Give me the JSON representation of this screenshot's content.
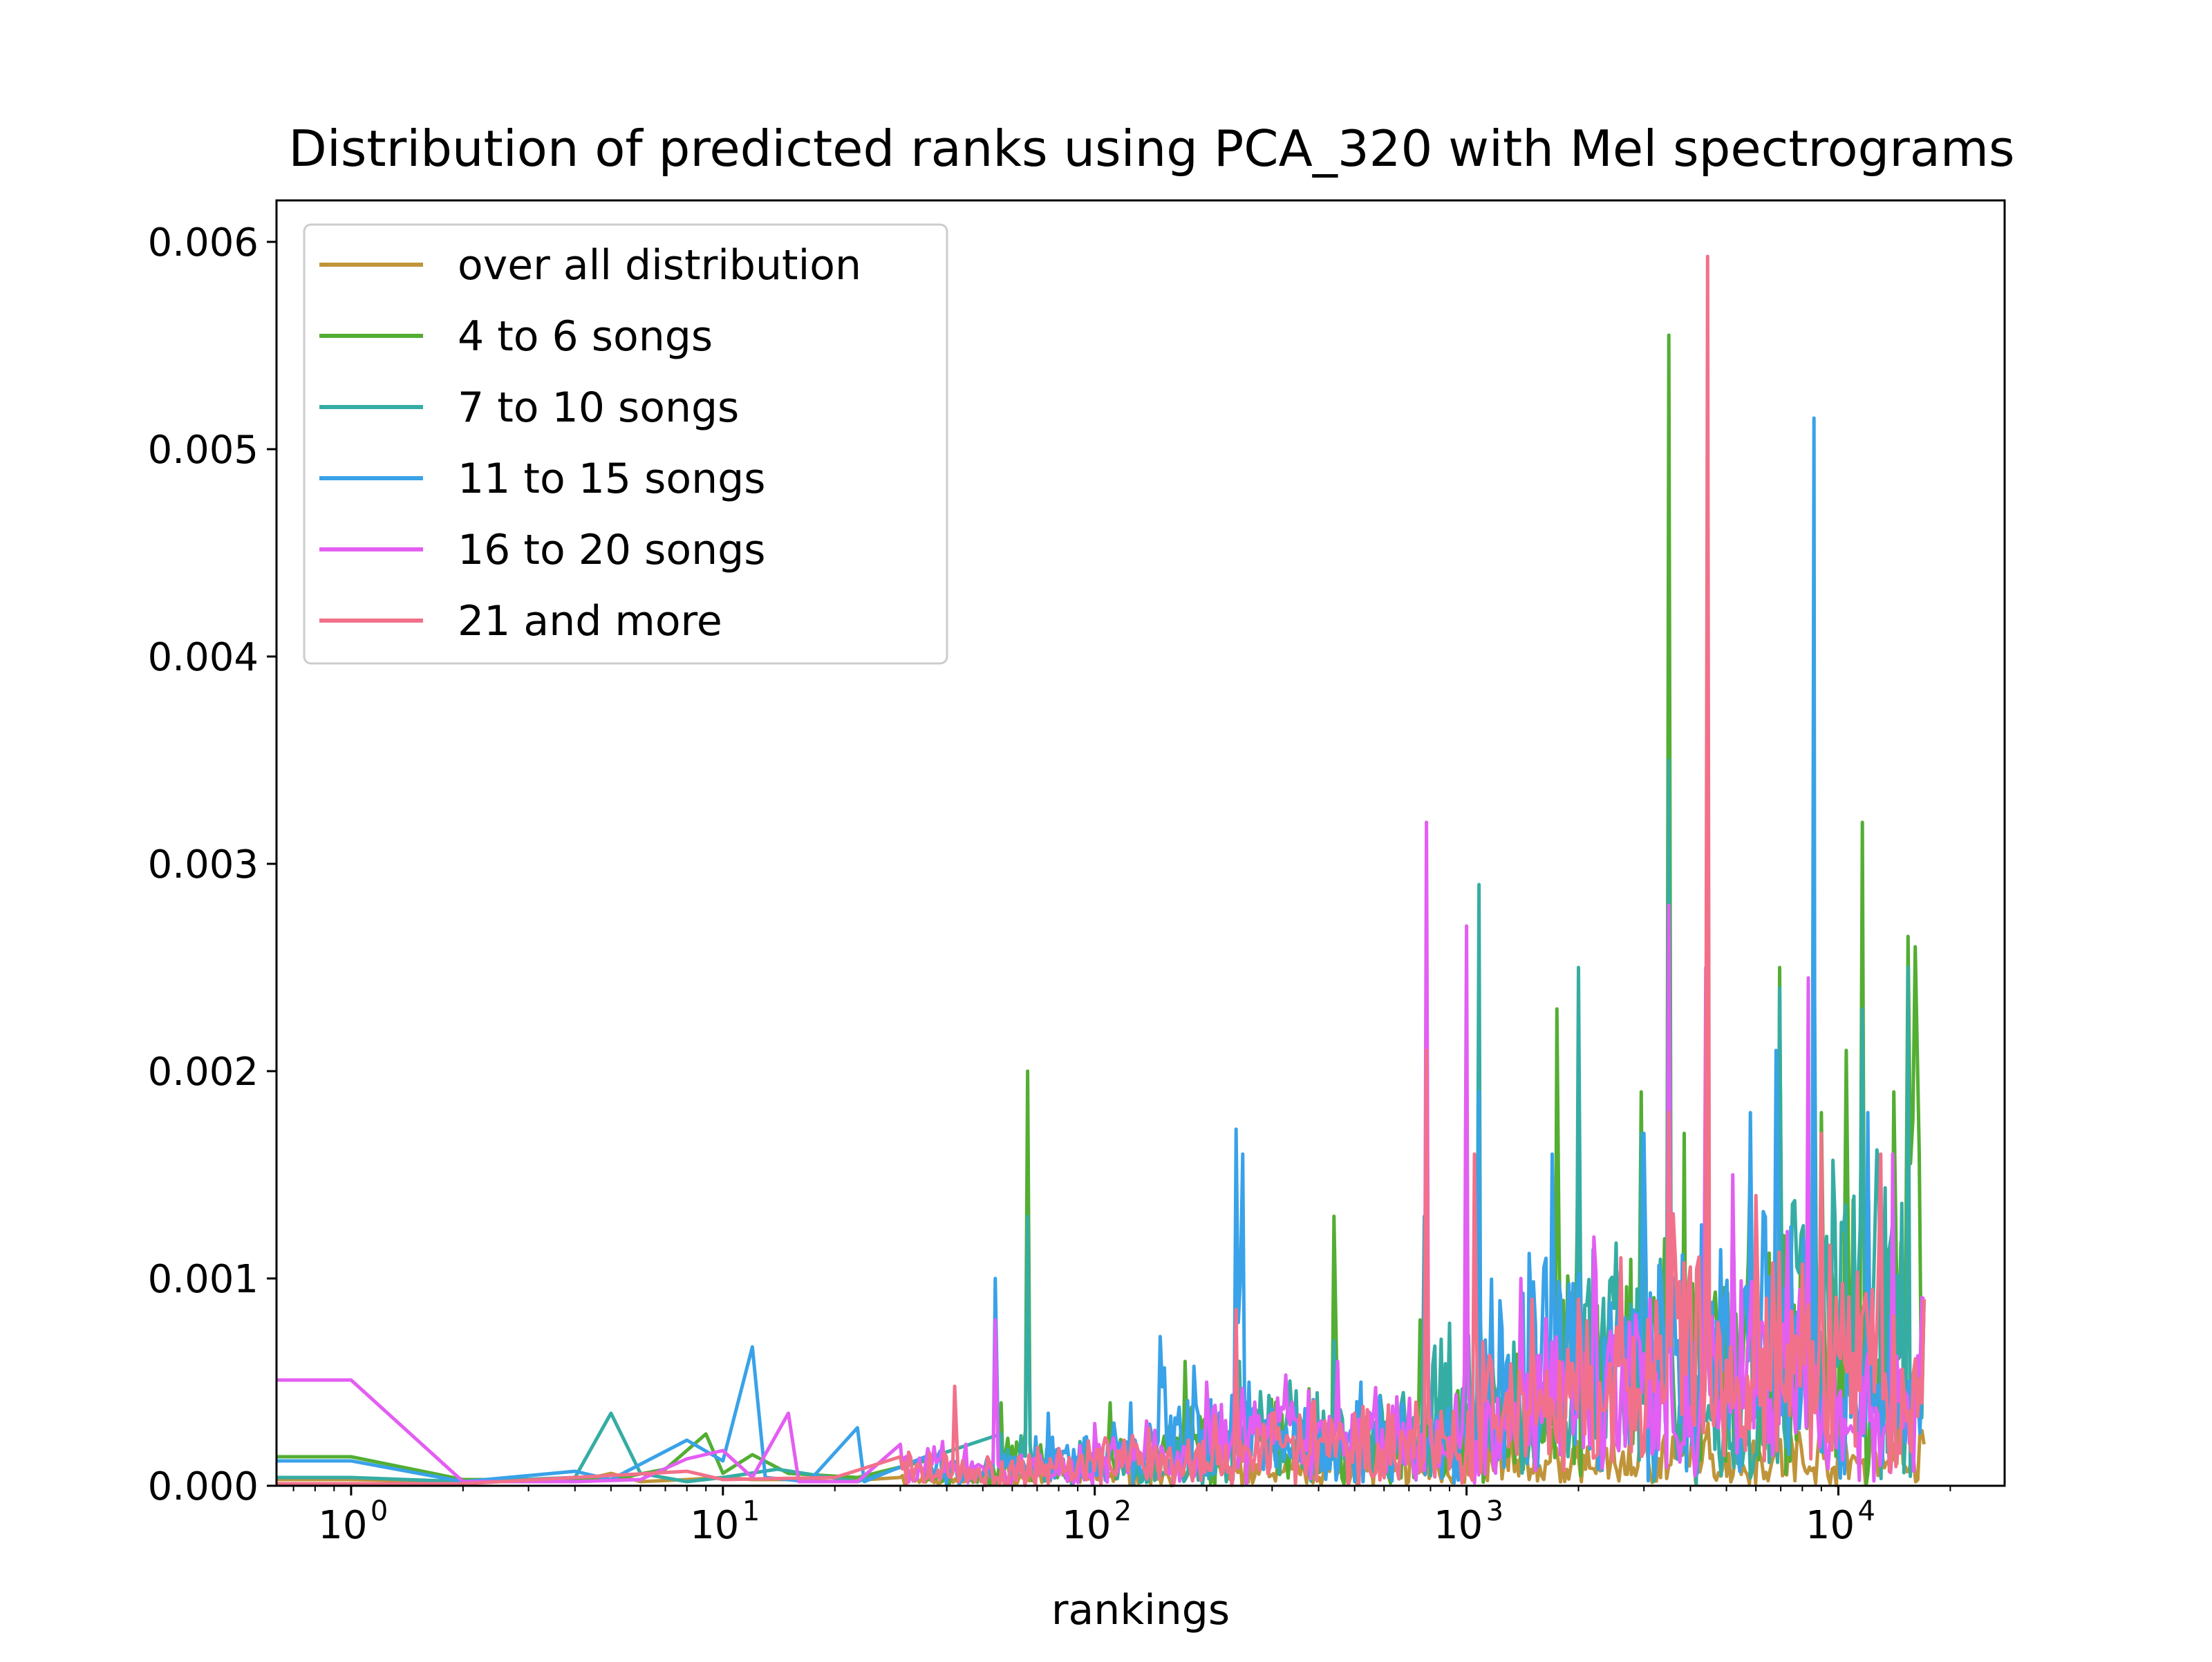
{
  "chart_data": {
    "type": "line",
    "title": "Distribution of predicted ranks using PCA_320 with Mel spectrograms",
    "xlabel": "rankings",
    "ylabel": "",
    "xscale": "log",
    "xlim": [
      0.63,
      28000
    ],
    "ylim": [
      0,
      0.0062
    ],
    "x_ticks": [
      {
        "base": "10",
        "exp": "0",
        "value": 1
      },
      {
        "base": "10",
        "exp": "1",
        "value": 10
      },
      {
        "base": "10",
        "exp": "2",
        "value": 100
      },
      {
        "base": "10",
        "exp": "3",
        "value": 1000
      },
      {
        "base": "10",
        "exp": "4",
        "value": 10000
      }
    ],
    "y_ticks": [
      "0.000",
      "0.001",
      "0.002",
      "0.003",
      "0.004",
      "0.005",
      "0.006"
    ],
    "y_tick_values": [
      0,
      0.001,
      0.002,
      0.003,
      0.004,
      0.005,
      0.006
    ],
    "grid": false,
    "legend_position": "top-left",
    "series": [
      {
        "name": "over all distribution",
        "color": "#c0943a",
        "points": [
          [
            0.63,
            3e-05
          ],
          [
            1,
            3e-05
          ],
          [
            2,
            2e-05
          ],
          [
            3,
            3e-05
          ],
          [
            4,
            2e-05
          ],
          [
            5,
            6e-05
          ],
          [
            6,
            2e-05
          ],
          [
            8,
            3e-05
          ],
          [
            10,
            4e-05
          ],
          [
            12,
            3e-05
          ],
          [
            15,
            3e-05
          ],
          [
            20,
            2e-05
          ],
          [
            30,
            4e-05
          ],
          [
            40,
            6e-05
          ],
          [
            60,
            8e-05
          ],
          [
            100,
            0.0001
          ],
          [
            200,
            0.00012
          ],
          [
            500,
            0.00015
          ],
          [
            1000,
            0.00018
          ],
          [
            3000,
            0.0002
          ],
          [
            10000,
            0.00022
          ],
          [
            17000,
            0.0002
          ]
        ]
      },
      {
        "name": "4 to 6 songs",
        "color": "#53ae33",
        "points": [
          [
            0.63,
            0.00014
          ],
          [
            1,
            0.00014
          ],
          [
            2,
            3e-05
          ],
          [
            3,
            3e-05
          ],
          [
            5,
            3e-05
          ],
          [
            7,
            8e-05
          ],
          [
            9,
            0.00025
          ],
          [
            10,
            6e-05
          ],
          [
            12,
            0.00015
          ],
          [
            15,
            6e-05
          ],
          [
            23,
            4e-05
          ],
          [
            35,
            0.00012
          ],
          [
            44,
            6e-05
          ],
          [
            56,
            0.0004
          ],
          [
            66,
            0.002
          ],
          [
            67,
            0.0002
          ],
          [
            110,
            0.0004
          ],
          [
            175,
            0.0006
          ],
          [
            240,
            0.0005
          ],
          [
            440,
            0.0013
          ],
          [
            450,
            0.0003
          ],
          [
            750,
            0.0008
          ],
          [
            1080,
            0.0008
          ],
          [
            1750,
            0.0023
          ],
          [
            2000,
            0.0017
          ],
          [
            2950,
            0.0019
          ],
          [
            3500,
            0.00555
          ],
          [
            3550,
            0.0008
          ],
          [
            3850,
            0.0017
          ],
          [
            5800,
            0.0016
          ],
          [
            6950,
            0.0025
          ],
          [
            9000,
            0.0018
          ],
          [
            10500,
            0.0021
          ],
          [
            11600,
            0.0032
          ],
          [
            14100,
            0.0019
          ],
          [
            15400,
            0.00265
          ],
          [
            16100,
            0.0026
          ],
          [
            16500,
            0.0016
          ],
          [
            17000,
            0.0009
          ]
        ]
      },
      {
        "name": "7 to 10 songs",
        "color": "#36ada4",
        "points": [
          [
            0.63,
            4e-05
          ],
          [
            1,
            4e-05
          ],
          [
            2,
            2e-05
          ],
          [
            4,
            4e-05
          ],
          [
            5,
            0.00035
          ],
          [
            6,
            6e-05
          ],
          [
            8,
            2e-05
          ],
          [
            10,
            4e-05
          ],
          [
            14,
            8e-05
          ],
          [
            23,
            2e-05
          ],
          [
            56,
            0.00025
          ],
          [
            66,
            0.0013
          ],
          [
            67,
            0.0002
          ],
          [
            200,
            0.0004
          ],
          [
            245,
            0.0006
          ],
          [
            440,
            0.0007
          ],
          [
            770,
            0.0013
          ],
          [
            1080,
            0.0029
          ],
          [
            1090,
            0.0008
          ],
          [
            2000,
            0.0025
          ],
          [
            2950,
            0.0017
          ],
          [
            3500,
            0.0035
          ],
          [
            3550,
            0.0008
          ],
          [
            6950,
            0.0024
          ],
          [
            8600,
            0.0028
          ],
          [
            11600,
            0.0023
          ],
          [
            15400,
            0.0025
          ],
          [
            17000,
            0.0009
          ]
        ]
      },
      {
        "name": "11 to 15 songs",
        "color": "#39a2e8",
        "points": [
          [
            0.63,
            0.00012
          ],
          [
            1,
            0.00012
          ],
          [
            2,
            2e-05
          ],
          [
            4,
            7e-05
          ],
          [
            5,
            3e-05
          ],
          [
            8,
            0.00022
          ],
          [
            10,
            0.00012
          ],
          [
            12,
            0.00067
          ],
          [
            13,
            4e-05
          ],
          [
            17,
            2e-05
          ],
          [
            23,
            0.00028
          ],
          [
            24,
            2e-05
          ],
          [
            35,
            0.00014
          ],
          [
            54,
            0.001
          ],
          [
            55,
            0.0002
          ],
          [
            75,
            0.00035
          ],
          [
            125,
            0.0004
          ],
          [
            150,
            0.00072
          ],
          [
            240,
            0.00172
          ],
          [
            250,
            0.0016
          ],
          [
            260,
            0.0005
          ],
          [
            520,
            0.0005
          ],
          [
            1080,
            0.0019
          ],
          [
            1700,
            0.0016
          ],
          [
            3000,
            0.0017
          ],
          [
            4400,
            0.0017
          ],
          [
            5800,
            0.0018
          ],
          [
            6800,
            0.0021
          ],
          [
            8600,
            0.00515
          ],
          [
            8650,
            0.0009
          ],
          [
            12000,
            0.0018
          ],
          [
            17000,
            0.0009
          ]
        ]
      },
      {
        "name": "16 to 20 songs",
        "color": "#e35ef2",
        "points": [
          [
            0.63,
            0.00051
          ],
          [
            1,
            0.00051
          ],
          [
            2,
            2e-05
          ],
          [
            4,
            2e-05
          ],
          [
            6,
            3e-05
          ],
          [
            8,
            0.00013
          ],
          [
            10,
            0.00017
          ],
          [
            12,
            4e-05
          ],
          [
            15,
            0.00035
          ],
          [
            16,
            2e-05
          ],
          [
            23,
            2e-05
          ],
          [
            30,
            0.0002
          ],
          [
            45,
            0.0002
          ],
          [
            54,
            0.0008
          ],
          [
            55,
            0.0001
          ],
          [
            100,
            0.0003
          ],
          [
            200,
            0.0005
          ],
          [
            240,
            0.0008
          ],
          [
            450,
            0.0006
          ],
          [
            780,
            0.0032
          ],
          [
            790,
            0.0005
          ],
          [
            1000,
            0.0027
          ],
          [
            1010,
            0.0005
          ],
          [
            1400,
            0.001
          ],
          [
            2200,
            0.0012
          ],
          [
            3500,
            0.0028
          ],
          [
            3550,
            0.0005
          ],
          [
            4400,
            0.0025
          ],
          [
            5200,
            0.0015
          ],
          [
            8300,
            0.00245
          ],
          [
            8350,
            0.0005
          ],
          [
            14000,
            0.0016
          ],
          [
            17000,
            0.0009
          ]
        ]
      },
      {
        "name": "21 and more",
        "color": "#f2718a",
        "points": [
          [
            0.63,
            1e-05
          ],
          [
            1,
            1e-05
          ],
          [
            2,
            1e-05
          ],
          [
            8,
            7e-05
          ],
          [
            10,
            3e-05
          ],
          [
            20,
            4e-05
          ],
          [
            30,
            0.00014
          ],
          [
            42,
            0.00048
          ],
          [
            43,
            2e-05
          ],
          [
            60,
            0.00012
          ],
          [
            80,
            0.00018
          ],
          [
            120,
            0.00022
          ],
          [
            240,
            0.00085
          ],
          [
            300,
            0.00035
          ],
          [
            500,
            0.00035
          ],
          [
            780,
            0.0021
          ],
          [
            790,
            0.0003
          ],
          [
            1050,
            0.0016
          ],
          [
            1500,
            0.0009
          ],
          [
            2000,
            0.0009
          ],
          [
            2600,
            0.0011
          ],
          [
            3500,
            0.0018
          ],
          [
            4450,
            0.00593
          ],
          [
            4500,
            0.0008
          ],
          [
            6000,
            0.0014
          ],
          [
            9000,
            0.0017
          ],
          [
            13000,
            0.0016
          ],
          [
            17000,
            0.0009
          ]
        ]
      }
    ]
  }
}
